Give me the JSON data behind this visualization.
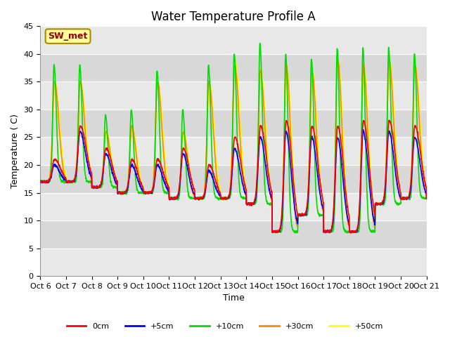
{
  "title": "Water Temperature Profile A",
  "xlabel": "Time",
  "ylabel": "Temperature (C)",
  "ylim": [
    0,
    45
  ],
  "yticks": [
    0,
    5,
    10,
    15,
    20,
    25,
    30,
    35,
    40,
    45
  ],
  "x_tick_labels": [
    "Oct 6",
    "Oct 7",
    "Oct 8",
    "Oct 9",
    "Oct 10",
    "Oct 11",
    "Oct 12",
    "Oct 13",
    "Oct 14",
    "Oct 15",
    "Oct 16",
    "Oct 17",
    "Oct 18",
    "Oct 19",
    "Oct 20",
    "Oct 21"
  ],
  "colors": {
    "0cm": "#ff0000",
    "+5cm": "#0000ff",
    "+10cm": "#00dd00",
    "+30cm": "#ff8800",
    "+50cm": "#ffff00"
  },
  "legend_labels": [
    "0cm",
    "+5cm",
    "+10cm",
    "+30cm",
    "+50cm"
  ],
  "annotation_text": "SW_met",
  "annotation_color": "#990000",
  "annotation_bg": "#ffff99",
  "annotation_border": "#aa8800",
  "band_colors": [
    "#e8e8e8",
    "#d8d8d8"
  ],
  "grid_line_color": "#ffffff",
  "title_fontsize": 12,
  "label_fontsize": 9,
  "tick_fontsize": 8
}
